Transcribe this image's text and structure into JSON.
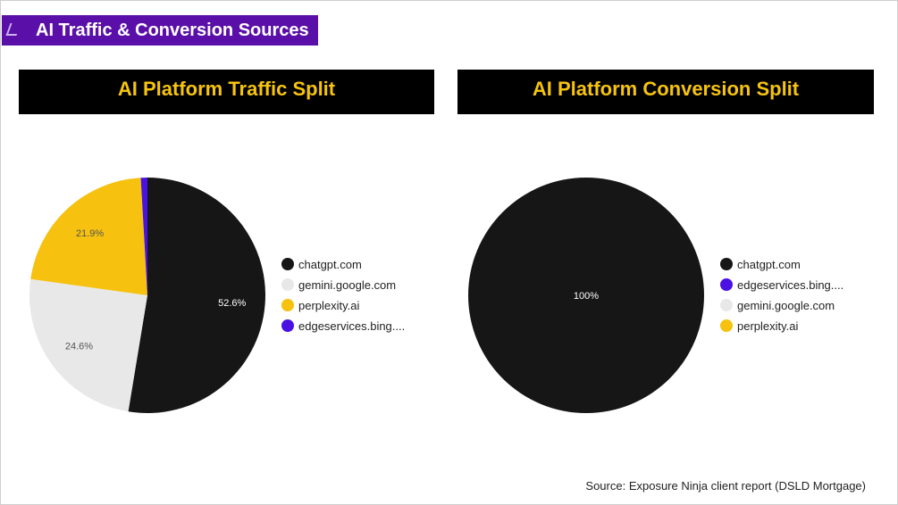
{
  "page": {
    "title": "AI Traffic & Conversion Sources"
  },
  "source_note": "Source: Exposure Ninja client report (DSLD Mortgage)",
  "chart_data": [
    {
      "type": "pie",
      "title": "AI Platform Traffic Split",
      "categories": [
        "chatgpt.com",
        "gemini.google.com",
        "perplexity.ai",
        "edgeservices.bing...."
      ],
      "values": [
        52.6,
        24.6,
        21.9,
        0.9
      ],
      "labels": [
        "52.6%",
        "24.6%",
        "21.9%",
        ""
      ],
      "colors": [
        "#161616",
        "#e8e8e8",
        "#f6c10f",
        "#4a11e3"
      ],
      "legend_position": "right"
    },
    {
      "type": "pie",
      "title": "AI Platform Conversion Split",
      "categories": [
        "chatgpt.com",
        "edgeservices.bing....",
        "gemini.google.com",
        "perplexity.ai"
      ],
      "values": [
        100,
        0,
        0,
        0
      ],
      "labels": [
        "100%",
        "",
        "",
        ""
      ],
      "colors": [
        "#161616",
        "#4a11e3",
        "#e8e8e8",
        "#f6c10f"
      ],
      "legend_position": "right"
    }
  ]
}
